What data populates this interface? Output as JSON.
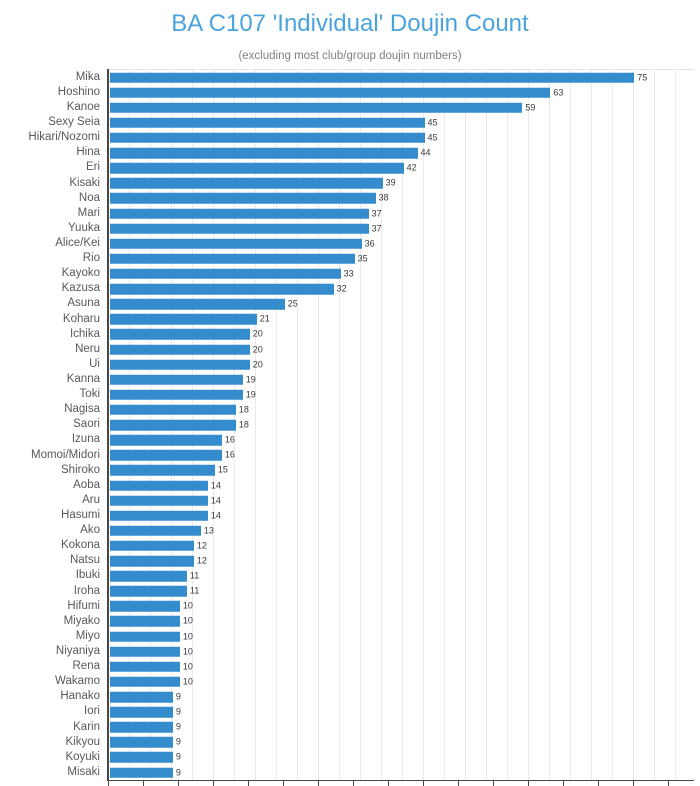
{
  "header": {
    "title": "BA C107 'Individual' Doujin Count",
    "subtitle": "(excluding most club/group doujin numbers)"
  },
  "chart_data": {
    "type": "bar",
    "orientation": "horizontal",
    "title": "BA C107 'Individual' Doujin Count",
    "subtitle": "(excluding most club/group doujin numbers)",
    "categories": [
      "Mika",
      "Hoshino",
      "Kanoe",
      "Sexy Seia",
      "Hikari/Nozomi",
      "Hina",
      "Eri",
      "Kisaki",
      "Noa",
      "Mari",
      "Yuuka",
      "Alice/Kei",
      "Rio",
      "Kayoko",
      "Kazusa",
      "Asuna",
      "Koharu",
      "Ichika",
      "Neru",
      "Ui",
      "Kanna",
      "Toki",
      "Nagisa",
      "Saori",
      "Izuna",
      "Momoi/Midori",
      "Shiroko",
      "Aoba",
      "Aru",
      "Hasumi",
      "Ako",
      "Kokona",
      "Natsu",
      "Ibuki",
      "Iroha",
      "Hifumi",
      "Miyako",
      "Miyo",
      "Niyaniya",
      "Rena",
      "Wakamo",
      "Hanako",
      "Iori",
      "Karin",
      "Kikyou",
      "Koyuki",
      "Misaki"
    ],
    "values": [
      75,
      63,
      59,
      45,
      45,
      44,
      42,
      39,
      38,
      37,
      37,
      36,
      35,
      33,
      32,
      25,
      21,
      20,
      20,
      20,
      19,
      19,
      18,
      18,
      16,
      16,
      15,
      14,
      14,
      14,
      13,
      12,
      12,
      11,
      11,
      10,
      10,
      10,
      10,
      10,
      10,
      9,
      9,
      9,
      9,
      9,
      9
    ],
    "value_labels_shown": true,
    "xlim": [
      0,
      84
    ],
    "grid": true,
    "legend": false,
    "bar_color": "#348ccd",
    "title_color": "#4aa3dd",
    "subtitle_color": "#7f7f7f"
  }
}
